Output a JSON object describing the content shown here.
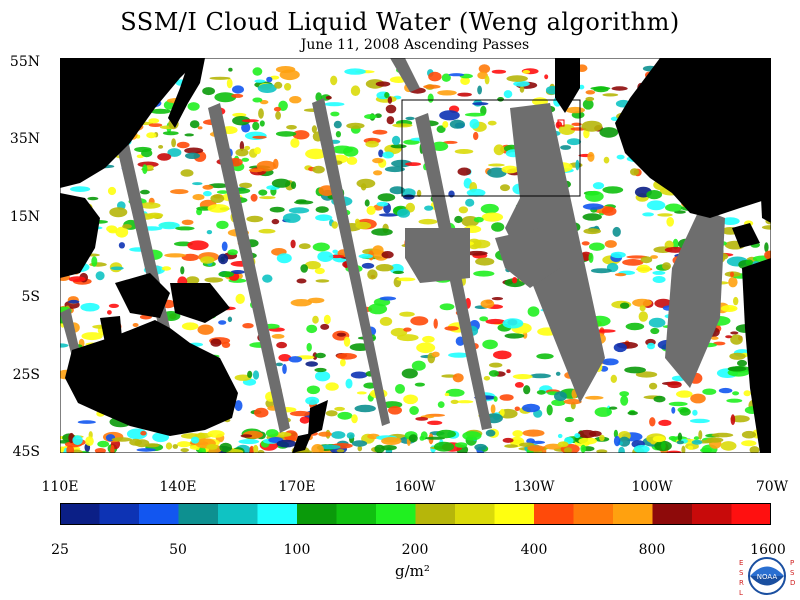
{
  "title": "SSM/I Cloud Liquid Water (Weng algorithm)",
  "subtitle": "June 11, 2008  Ascending Passes",
  "lat_labels": [
    "55N",
    "35N",
    "15N",
    "5S",
    "25S",
    "45S"
  ],
  "lon_labels": [
    "110E",
    "140E",
    "170E",
    "160W",
    "130W",
    "100W",
    "70W"
  ],
  "colorbar": {
    "colors": [
      "#0b1f86",
      "#0d33b4",
      "#1256f0",
      "#0d9090",
      "#0fc3c3",
      "#20ffff",
      "#0a9a0a",
      "#10c010",
      "#20f020",
      "#b6b60a",
      "#dada0a",
      "#ffff10",
      "#ff4a0a",
      "#ff7a0a",
      "#ffa10f",
      "#8e0a0a",
      "#c80a0a",
      "#ff1010"
    ],
    "tick_labels": [
      "25",
      "50",
      "100",
      "200",
      "400",
      "800",
      "1600"
    ]
  },
  "unit_label": "g/m²",
  "logo": {
    "letters_left": "ESRL",
    "letters_right": "PSD",
    "text": "NOAA"
  },
  "colors": {
    "land": "#000000",
    "missing": "#6e6e6e",
    "ocean_clear": "#ffffff"
  }
}
